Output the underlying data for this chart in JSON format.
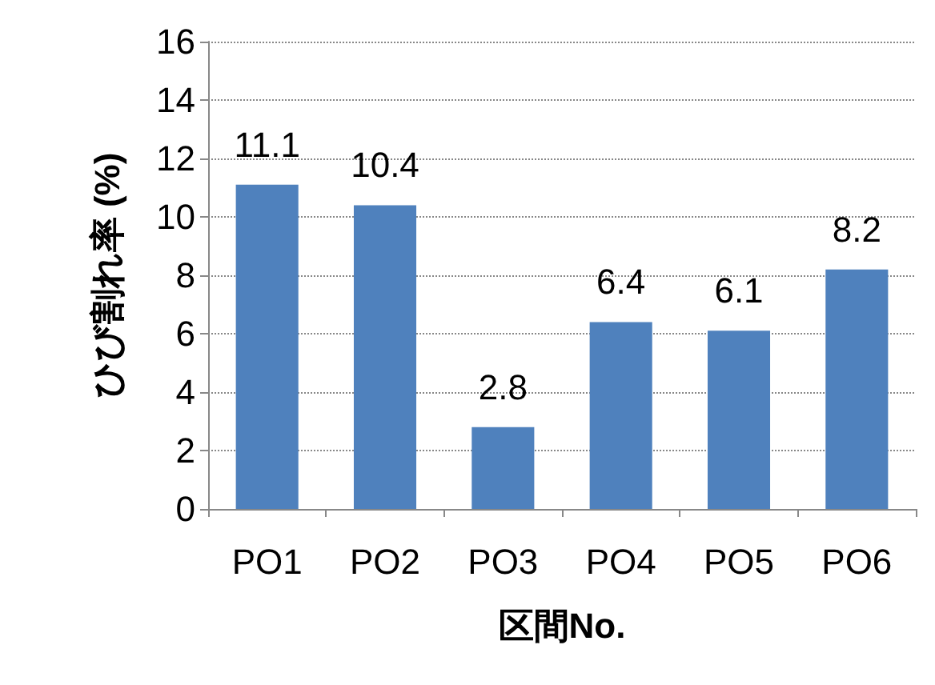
{
  "chart_data": {
    "type": "bar",
    "xlabel": "区間No.",
    "ylabel": "ひび割れ率 (%)",
    "categories": [
      "PO1",
      "PO2",
      "PO3",
      "PO4",
      "PO5",
      "PO6"
    ],
    "values": [
      11.1,
      10.4,
      2.8,
      6.4,
      6.1,
      8.2
    ],
    "color": "#4f81bd",
    "ylim": [
      0,
      16
    ],
    "yticks": [
      0,
      2,
      4,
      6,
      8,
      10,
      12,
      14,
      16
    ],
    "grid": "y",
    "data_labels": true
  }
}
